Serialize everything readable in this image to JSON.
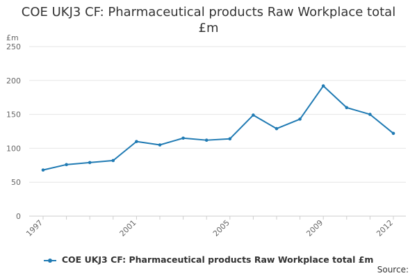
{
  "chart_data": {
    "type": "line",
    "title_lines": [
      "COE UKJ3 CF: Pharmaceutical products Raw Workplace total",
      "£m"
    ],
    "ylabel": "£m",
    "xlabel": "",
    "x": [
      1997,
      1998,
      1999,
      2000,
      2001,
      2002,
      2003,
      2004,
      2005,
      2006,
      2007,
      2008,
      2009,
      2010,
      2011,
      2012
    ],
    "series": [
      {
        "name": "COE UKJ3 CF: Pharmaceutical products Raw Workplace total £m",
        "values": [
          68,
          76,
          79,
          82,
          110,
          105,
          115,
          112,
          114,
          149,
          129,
          143,
          192,
          160,
          150,
          122
        ]
      }
    ],
    "ylim": [
      0,
      250
    ],
    "yticks": [
      "0",
      "50",
      "100",
      "150",
      "200",
      "250"
    ],
    "xtick_labels": [
      "1997",
      "2001",
      "2005",
      "2009",
      "2012"
    ],
    "xtick_values": [
      1997,
      2001,
      2005,
      2009,
      2012
    ],
    "grid": true,
    "legend_position": "bottom",
    "colors": {
      "series": "#1f7ab3",
      "grid": "#e6e6e6",
      "axis": "#cccccc",
      "text": "#333333"
    }
  },
  "source_label": "Source:"
}
